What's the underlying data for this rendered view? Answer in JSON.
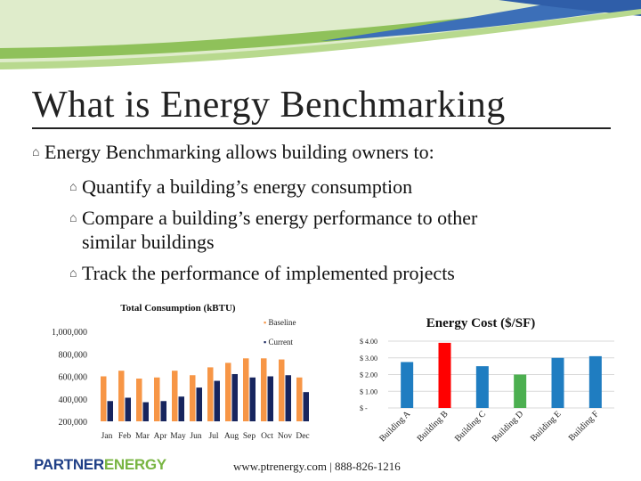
{
  "slide": {
    "title": "What is Energy Benchmarking",
    "intro": "Energy Benchmarking allows building owners to:",
    "points": [
      "Quantify a building’s energy consumption",
      "Compare a building’s energy performance to other",
      "similar buildings",
      "Track the performance of implemented projects"
    ],
    "footer_url": "www.ptrenergy.com | 888-826-1216",
    "logo_part1": "PARTNER",
    "logo_part2": "ENERGY"
  },
  "colors": {
    "baseline": "#f79646",
    "current": "#17255e",
    "cost_bar": "#1f7dc1",
    "cost_highlight_red": "#ff0000",
    "cost_highlight_green": "#4caf50"
  },
  "chart_data": [
    {
      "type": "bar",
      "title": "Total Consumption (kBTU)",
      "categories": [
        "Jan",
        "Feb",
        "Mar",
        "Apr",
        "May",
        "Jun",
        "Jul",
        "Aug",
        "Sep",
        "Oct",
        "Nov",
        "Dec"
      ],
      "series": [
        {
          "name": "Baseline",
          "values": [
            600000,
            650000,
            580000,
            590000,
            650000,
            610000,
            680000,
            720000,
            760000,
            760000,
            750000,
            590000
          ]
        },
        {
          "name": "Current",
          "values": [
            380000,
            410000,
            370000,
            380000,
            420000,
            500000,
            560000,
            620000,
            590000,
            600000,
            610000,
            460000
          ]
        }
      ],
      "y_ticks": [
        "1,000,000",
        "800,000",
        "600,000",
        "400,000",
        "200,000"
      ],
      "ylim": [
        200000,
        1000000
      ],
      "legend": "top-right",
      "grid": false
    },
    {
      "type": "bar",
      "title": "Energy Cost ($/SF)",
      "categories": [
        "Building A",
        "Building B",
        "Building C",
        "Building D",
        "Building E",
        "Building F"
      ],
      "values": [
        2.75,
        3.9,
        2.5,
        2.0,
        3.0,
        3.1
      ],
      "y_ticks": [
        "$ 4.00",
        "$ 3.00",
        "$ 2.00",
        "$ 1.00",
        "$ -"
      ],
      "ylim": [
        0,
        4
      ],
      "grid": true
    }
  ]
}
